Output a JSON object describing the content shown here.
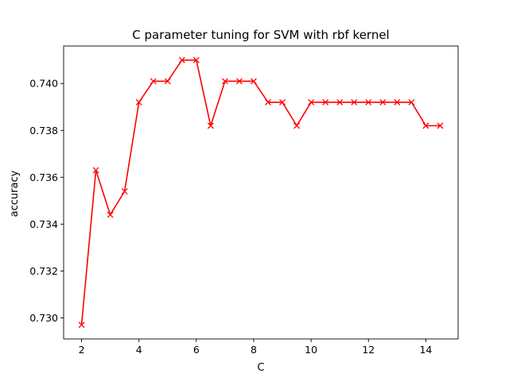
{
  "chart_data": {
    "type": "line",
    "title": "C parameter tuning for SVM with rbf kernel",
    "xlabel": "C",
    "ylabel": "accuracy",
    "xlim": [
      1.375,
      15.125
    ],
    "ylim": [
      0.7291,
      0.7416
    ],
    "xticks": [
      2,
      4,
      6,
      8,
      10,
      12,
      14
    ],
    "xtick_labels": [
      "2",
      "4",
      "6",
      "8",
      "10",
      "12",
      "14"
    ],
    "yticks": [
      0.73,
      0.732,
      0.734,
      0.736,
      0.738,
      0.74
    ],
    "ytick_labels": [
      "0.730",
      "0.732",
      "0.734",
      "0.736",
      "0.738",
      "0.740"
    ],
    "grid": false,
    "series": [
      {
        "color": "#ff0000",
        "marker": "x",
        "x": [
          2,
          2.5,
          3,
          3.5,
          4,
          4.5,
          5,
          5.5,
          6,
          6.5,
          7,
          7.5,
          8,
          8.5,
          9,
          9.5,
          10,
          10.5,
          11,
          11.5,
          12,
          12.5,
          13,
          13.5,
          14,
          14.5
        ],
        "values": [
          0.7297,
          0.7363,
          0.7344,
          0.7354,
          0.7392,
          0.7401,
          0.7401,
          0.741,
          0.741,
          0.7382,
          0.7401,
          0.7401,
          0.7401,
          0.7392,
          0.7392,
          0.7382,
          0.7392,
          0.7392,
          0.7392,
          0.7392,
          0.7392,
          0.7392,
          0.7392,
          0.7392,
          0.7382,
          0.7382
        ]
      }
    ]
  }
}
